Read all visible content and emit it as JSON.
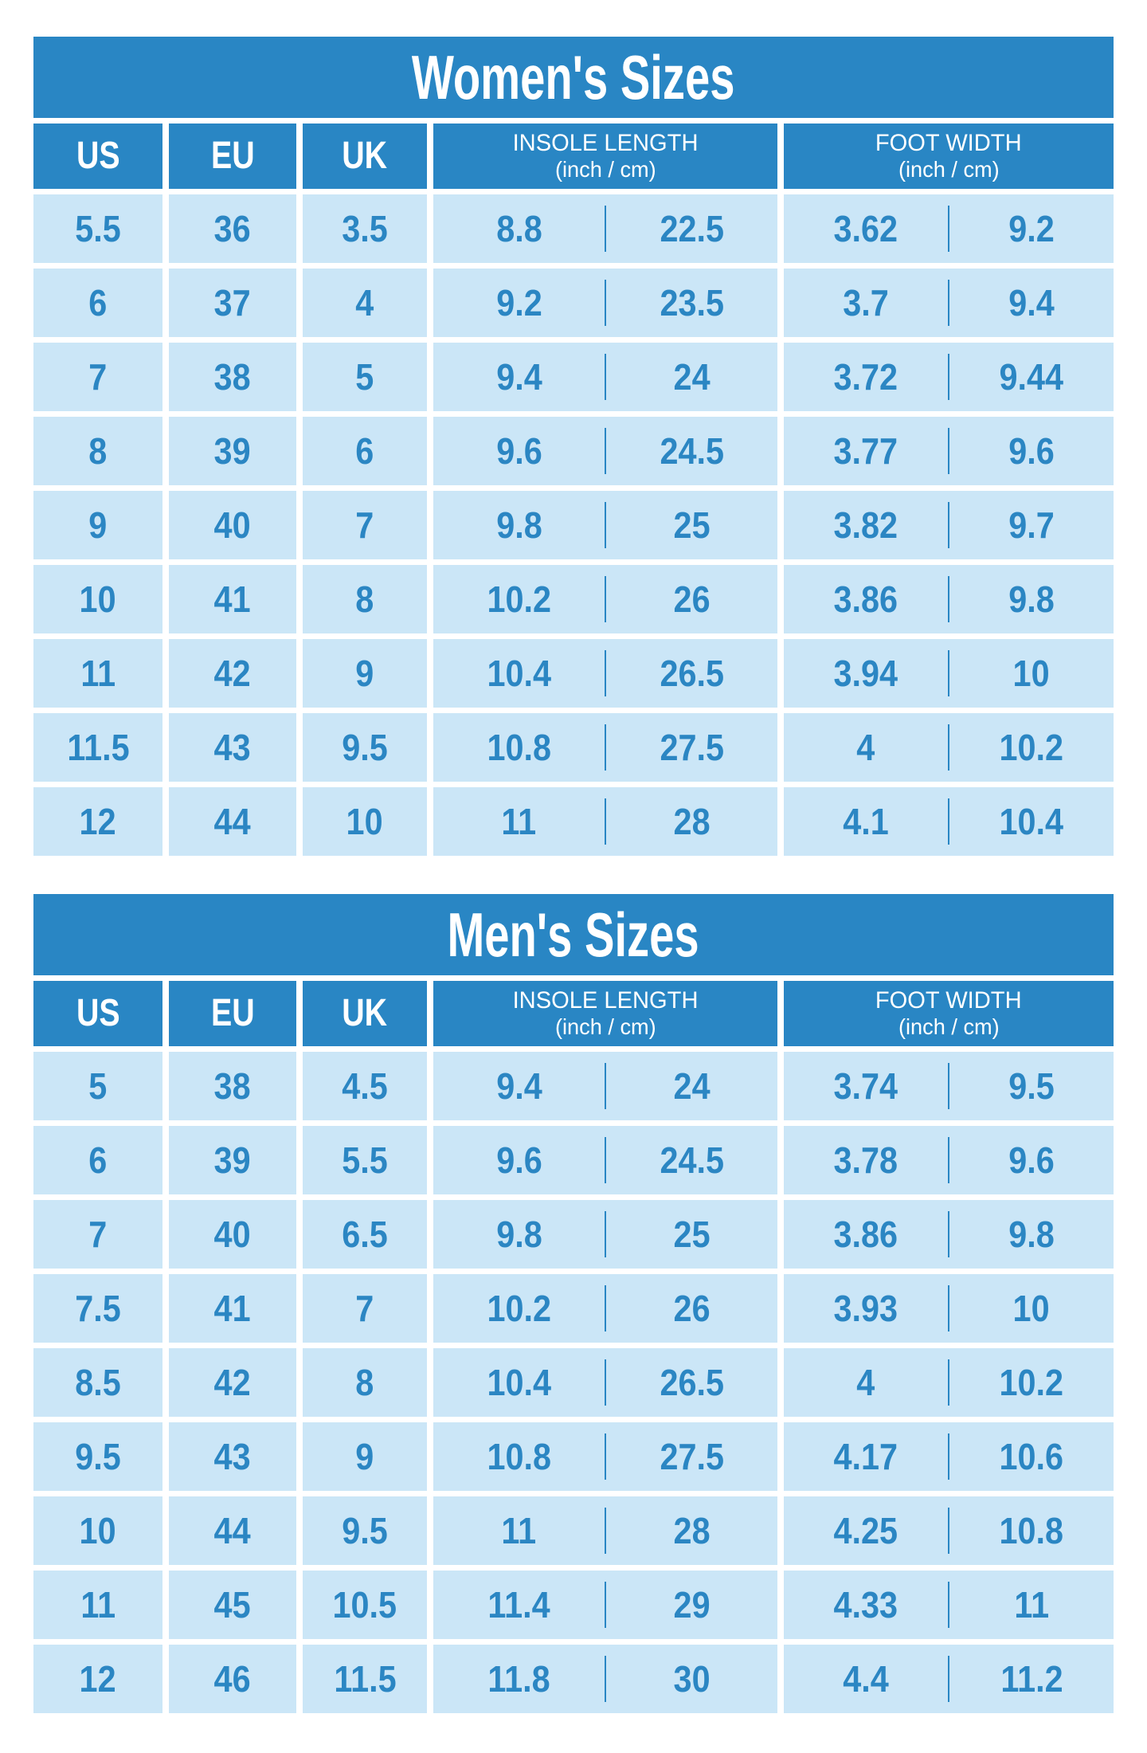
{
  "colors": {
    "table_blue": "#2986c4",
    "cell_blue": "#cbe6f7",
    "number_blue": "#2b86c3",
    "title_text": "#ffffff"
  },
  "header_labels": {
    "us": "US",
    "eu": "EU",
    "uk": "UK",
    "insole_label": "INSOLE LENGTH",
    "insole_unit": "(inch / cm)",
    "width_label": "FOOT WIDTH",
    "width_unit": "(inch / cm)"
  },
  "chart_data": [
    {
      "type": "table",
      "title": "Women's Sizes",
      "columns": [
        "US",
        "EU",
        "UK",
        "Insole length (inch)",
        "Insole length (cm)",
        "Foot width (inch)",
        "Foot width (cm)"
      ],
      "rows": [
        [
          "5.5",
          "36",
          "3.5",
          "8.8",
          "22.5",
          "3.62",
          "9.2"
        ],
        [
          "6",
          "37",
          "4",
          "9.2",
          "23.5",
          "3.7",
          "9.4"
        ],
        [
          "7",
          "38",
          "5",
          "9.4",
          "24",
          "3.72",
          "9.44"
        ],
        [
          "8",
          "39",
          "6",
          "9.6",
          "24.5",
          "3.77",
          "9.6"
        ],
        [
          "9",
          "40",
          "7",
          "9.8",
          "25",
          "3.82",
          "9.7"
        ],
        [
          "10",
          "41",
          "8",
          "10.2",
          "26",
          "3.86",
          "9.8"
        ],
        [
          "11",
          "42",
          "9",
          "10.4",
          "26.5",
          "3.94",
          "10"
        ],
        [
          "11.5",
          "43",
          "9.5",
          "10.8",
          "27.5",
          "4",
          "10.2"
        ],
        [
          "12",
          "44",
          "10",
          "11",
          "28",
          "4.1",
          "10.4"
        ]
      ]
    },
    {
      "type": "table",
      "title": "Men's Sizes",
      "columns": [
        "US",
        "EU",
        "UK",
        "Insole length (inch)",
        "Insole length (cm)",
        "Foot width (inch)",
        "Foot width (cm)"
      ],
      "rows": [
        [
          "5",
          "38",
          "4.5",
          "9.4",
          "24",
          "3.74",
          "9.5"
        ],
        [
          "6",
          "39",
          "5.5",
          "9.6",
          "24.5",
          "3.78",
          "9.6"
        ],
        [
          "7",
          "40",
          "6.5",
          "9.8",
          "25",
          "3.86",
          "9.8"
        ],
        [
          "7.5",
          "41",
          "7",
          "10.2",
          "26",
          "3.93",
          "10"
        ],
        [
          "8.5",
          "42",
          "8",
          "10.4",
          "26.5",
          "4",
          "10.2"
        ],
        [
          "9.5",
          "43",
          "9",
          "10.8",
          "27.5",
          "4.17",
          "10.6"
        ],
        [
          "10",
          "44",
          "9.5",
          "11",
          "28",
          "4.25",
          "10.8"
        ],
        [
          "11",
          "45",
          "10.5",
          "11.4",
          "29",
          "4.33",
          "11"
        ],
        [
          "12",
          "46",
          "11.5",
          "11.8",
          "30",
          "4.4",
          "11.2"
        ]
      ]
    }
  ]
}
